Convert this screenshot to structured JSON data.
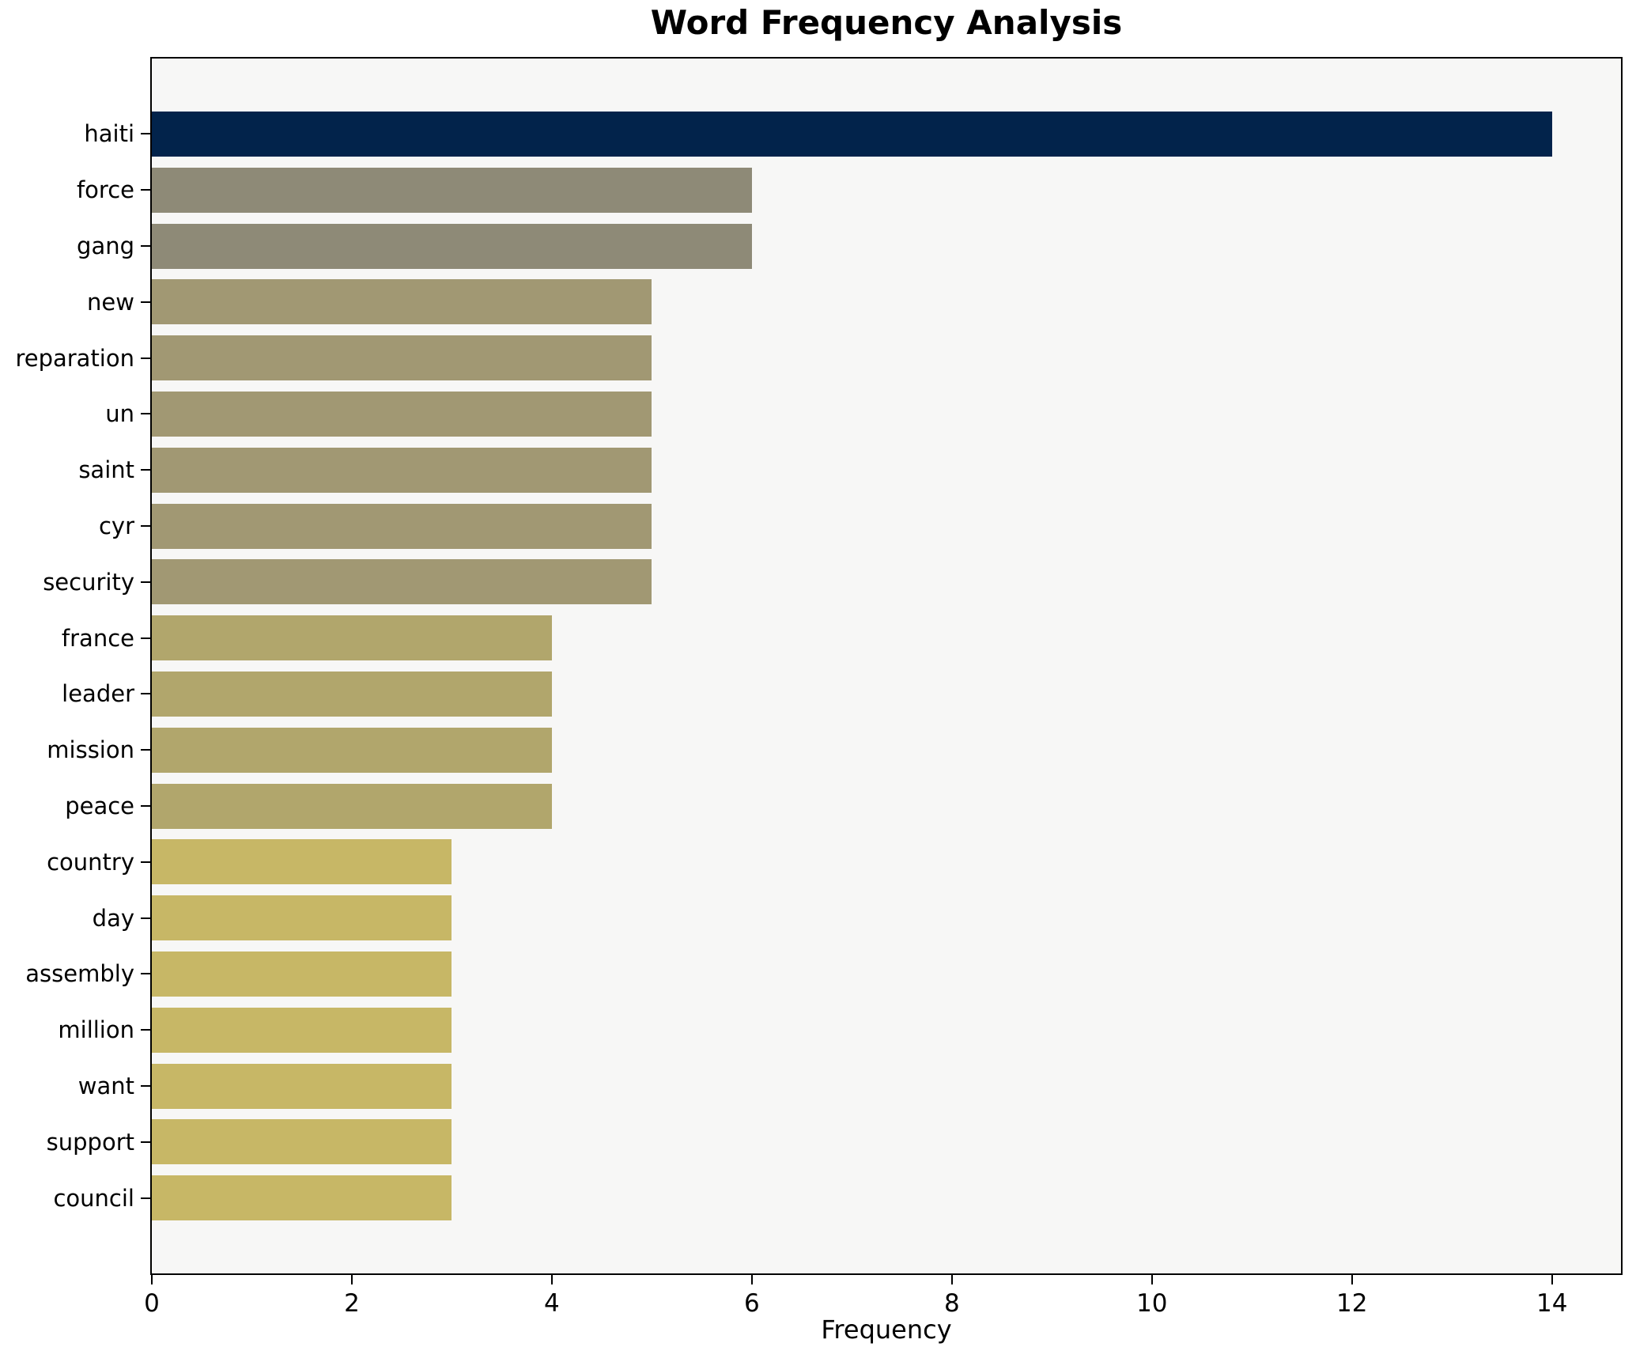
{
  "title": "Word Frequency Analysis",
  "colors": {
    "figure_background": "#ffffff",
    "plot_background": "#f7f7f6",
    "axis_line": "#000000",
    "text": "#000000"
  },
  "chart_data": {
    "type": "bar",
    "orientation": "horizontal",
    "title": "Word Frequency Analysis",
    "xlabel": "Frequency",
    "ylabel": "",
    "categories": [
      "haiti",
      "force",
      "gang",
      "new",
      "reparation",
      "un",
      "saint",
      "cyr",
      "security",
      "france",
      "leader",
      "mission",
      "peace",
      "country",
      "day",
      "assembly",
      "million",
      "want",
      "support",
      "council"
    ],
    "values": [
      14,
      6,
      6,
      5,
      5,
      5,
      5,
      5,
      5,
      4,
      4,
      4,
      4,
      3,
      3,
      3,
      3,
      3,
      3,
      3
    ],
    "bar_colors": [
      "#02234b",
      "#8e8a77",
      "#8e8a77",
      "#a19873",
      "#a19873",
      "#a19873",
      "#a19873",
      "#a19873",
      "#a19873",
      "#b1a66c",
      "#b1a66c",
      "#b1a66c",
      "#b1a66c",
      "#c7b766",
      "#c7b766",
      "#c7b766",
      "#c7b766",
      "#c7b766",
      "#c7b766",
      "#c7b766"
    ],
    "xlim": [
      0,
      14.69
    ],
    "x_ticks": [
      0,
      2,
      4,
      6,
      8,
      10,
      12,
      14
    ],
    "grid": false,
    "legend": null,
    "bar_height_fraction": 0.8
  }
}
